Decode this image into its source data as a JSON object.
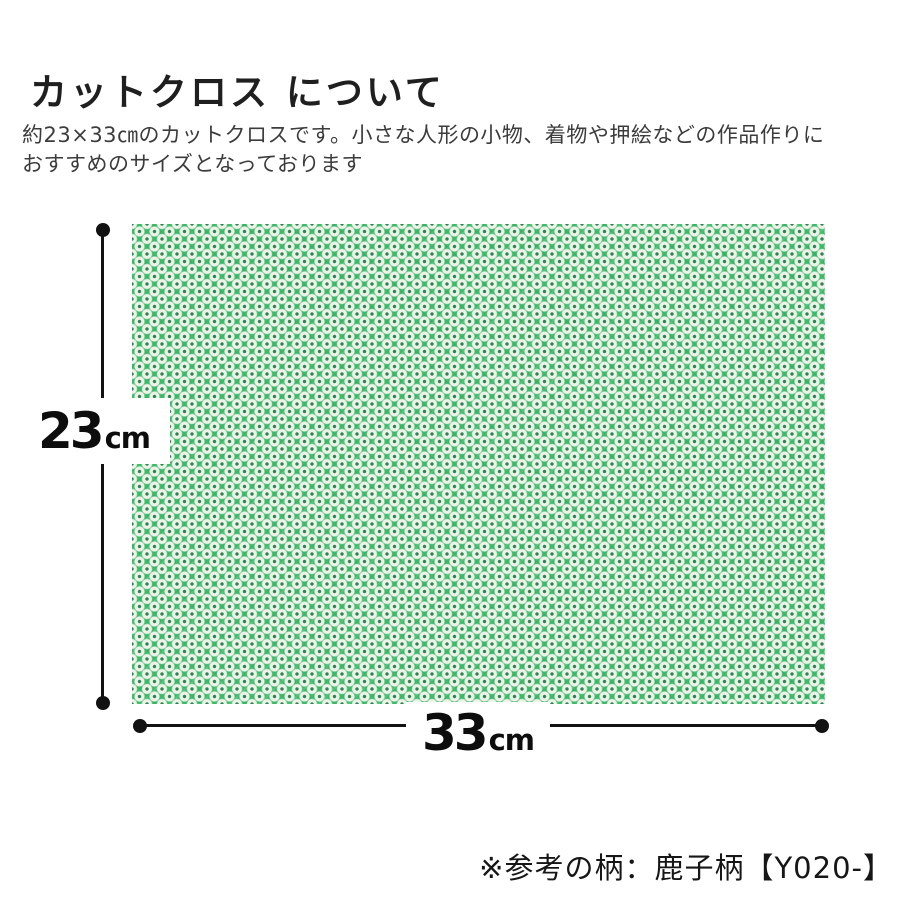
{
  "page": {
    "title": "カットクロス について",
    "description_line1": "約23×33㎝のカットクロスです。小さな人形の小物、着物や押絵などの作品作りに",
    "description_line2": "おすすめのサイズとなっております",
    "footer_note": "※参考の柄：鹿子柄【Y020-】"
  },
  "diagram": {
    "height_value": "23",
    "height_unit": "cm",
    "width_value": "33",
    "width_unit": "cm",
    "fabric_pattern": "kanoko-shibori-dot-pattern",
    "colors": {
      "fabric_green": "#3cba6a",
      "dot_white": "#eef3e9",
      "dot_center_green": "#2f8251",
      "dimension_line_black": "#121212"
    }
  }
}
